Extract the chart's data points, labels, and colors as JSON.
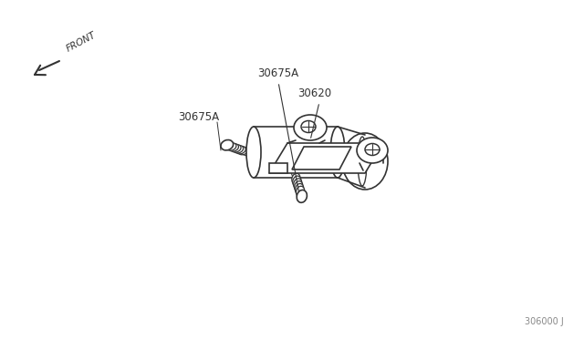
{
  "background_color": "#ffffff",
  "line_color": "#333333",
  "label_30620": "30620",
  "label_30675A_1": "30675A",
  "label_30675A_2": "30675A",
  "label_front": "FRONT",
  "label_ref": "306000 J",
  "fig_width": 6.4,
  "fig_height": 3.72,
  "dpi": 100
}
